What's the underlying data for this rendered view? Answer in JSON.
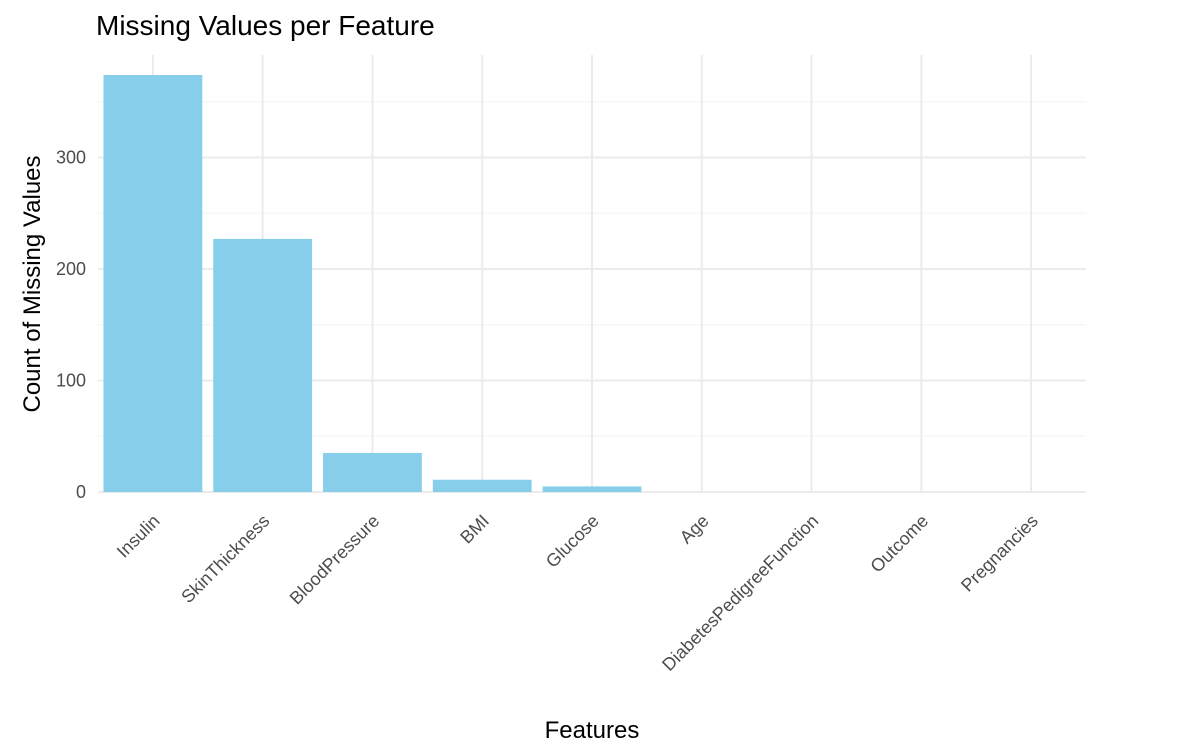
{
  "chart_data": {
    "type": "bar",
    "title": "Missing Values per Feature",
    "xlabel": "Features",
    "ylabel": "Count of Missing Values",
    "categories": [
      "Insulin",
      "SkinThickness",
      "BloodPressure",
      "BMI",
      "Glucose",
      "Age",
      "DiabetesPedigreeFunction",
      "Outcome",
      "Pregnancies"
    ],
    "values": [
      374,
      227,
      35,
      11,
      5,
      0,
      0,
      0,
      0
    ],
    "ylim": [
      0,
      374
    ],
    "yticks": [
      0,
      100,
      200,
      300
    ],
    "grid": true,
    "legend": "none",
    "bar_color": "#87CEEB"
  }
}
